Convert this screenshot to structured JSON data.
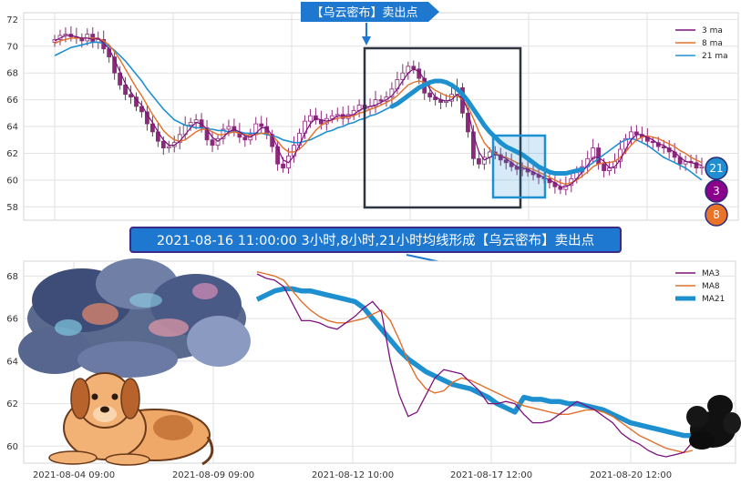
{
  "header_callout": {
    "text": "【乌云密布】卖出点"
  },
  "main_callout": {
    "text": "2021-08-16 11:00:00 3小时,8小时,21小时均线形成【乌云密布】卖出点"
  },
  "badges": [
    {
      "label": "21",
      "color": "#1f8fd1"
    },
    {
      "label": "3",
      "color": "#8b008b"
    },
    {
      "label": "8",
      "color": "#e8742a"
    }
  ],
  "colors": {
    "up": "#8b2a7a",
    "ma3": "#7b127b",
    "ma8": "#e0702a",
    "ma21": "#1e90d0",
    "box_dark": "#2f3540",
    "box_blue": "#1e90d0",
    "callout_bg": "#1e78d0"
  },
  "illustrations": {
    "cloud": "storm-cloud-illustration",
    "dog": "dog-illustration",
    "dark_cloud": "dark-cloud-illustration"
  },
  "chart_data": [
    {
      "type": "candlestick",
      "ylim": [
        57,
        72.5
      ],
      "yticks": [
        58,
        60,
        62,
        64,
        66,
        68,
        70,
        72
      ],
      "grid": true,
      "legend": {
        "placement": "top-right",
        "entries": [
          "3 ma",
          "8 ma",
          "21 ma"
        ]
      },
      "n_points": 120,
      "close": [
        70.5,
        70.8,
        70.9,
        70.7,
        70.6,
        70.4,
        70.9,
        70.3,
        70.5,
        69.8,
        69.2,
        68.0,
        67.1,
        66.4,
        66.2,
        65.5,
        65.1,
        64.2,
        63.6,
        62.9,
        62.4,
        62.5,
        62.8,
        63.4,
        64.1,
        64.3,
        64.5,
        63.9,
        63.0,
        62.6,
        63.1,
        63.8,
        64.0,
        63.6,
        63.2,
        63.0,
        63.4,
        64.2,
        64.0,
        63.4,
        62.5,
        61.2,
        60.9,
        61.8,
        62.6,
        63.5,
        64.4,
        64.8,
        64.5,
        64.2,
        64.6,
        64.8,
        64.9,
        64.6,
        64.9,
        65.2,
        65.6,
        65.3,
        65.5,
        66.0,
        65.9,
        66.2,
        66.8,
        67.5,
        68.0,
        68.5,
        68.3,
        67.6,
        66.5,
        66.2,
        66.0,
        65.8,
        65.9,
        66.4,
        66.9,
        65.0,
        63.6,
        61.6,
        61.2,
        61.7,
        62.1,
        61.9,
        61.5,
        61.3,
        61.0,
        60.8,
        60.9,
        60.6,
        60.4,
        60.2,
        60.1,
        59.8,
        59.5,
        59.3,
        59.6,
        60.1,
        60.6,
        61.0,
        61.6,
        62.4,
        61.2,
        60.7,
        60.9,
        61.4,
        62.3,
        63.1,
        63.6,
        63.4,
        63.2,
        62.9,
        62.8,
        62.5,
        62.4,
        62.1,
        61.7,
        61.2,
        61.4,
        61.3,
        60.9,
        61.0
      ],
      "ma3": [
        70.4,
        70.6,
        70.8,
        70.8,
        70.7,
        70.6,
        70.6,
        70.5,
        70.6,
        70.2,
        69.8,
        69.0,
        68.1,
        67.2,
        66.6,
        66.0,
        65.6,
        64.9,
        64.3,
        63.6,
        63.0,
        62.6,
        62.6,
        62.9,
        63.4,
        63.9,
        64.3,
        64.2,
        63.8,
        63.2,
        62.9,
        63.2,
        63.6,
        63.8,
        63.6,
        63.3,
        63.2,
        63.5,
        63.9,
        63.9,
        63.3,
        62.4,
        61.5,
        61.3,
        61.8,
        62.6,
        63.5,
        64.2,
        64.6,
        64.5,
        64.4,
        64.5,
        64.8,
        64.8,
        64.8,
        64.9,
        65.2,
        65.4,
        65.5,
        65.6,
        65.8,
        66.0,
        66.3,
        66.8,
        67.4,
        68.0,
        68.3,
        68.1,
        67.5,
        66.8,
        66.2,
        66.0,
        65.9,
        66.0,
        66.4,
        66.1,
        65.2,
        63.4,
        62.1,
        61.5,
        61.7,
        61.9,
        61.8,
        61.6,
        61.3,
        61.0,
        60.9,
        60.8,
        60.6,
        60.4,
        60.2,
        60.0,
        59.8,
        59.5,
        59.5,
        59.7,
        60.1,
        60.6,
        61.1,
        61.7,
        61.7,
        61.4,
        60.9,
        61.0,
        61.5,
        62.3,
        63.0,
        63.4,
        63.4,
        63.2,
        63.0,
        62.7,
        62.6,
        62.3,
        62.1,
        61.7,
        61.4,
        61.3,
        61.2,
        61.1
      ],
      "ma8": [
        70.2,
        70.4,
        70.5,
        70.6,
        70.6,
        70.6,
        70.6,
        70.6,
        70.6,
        70.4,
        70.1,
        69.6,
        69.0,
        68.3,
        67.6,
        66.9,
        66.3,
        65.6,
        64.9,
        64.3,
        63.7,
        63.3,
        63.0,
        62.9,
        63.0,
        63.3,
        63.6,
        63.8,
        63.8,
        63.6,
        63.4,
        63.4,
        63.5,
        63.6,
        63.5,
        63.4,
        63.3,
        63.4,
        63.5,
        63.5,
        63.3,
        62.9,
        62.4,
        62.1,
        62.1,
        62.3,
        62.7,
        63.2,
        63.7,
        64.1,
        64.3,
        64.5,
        64.6,
        64.7,
        64.7,
        64.8,
        65.0,
        65.1,
        65.3,
        65.4,
        65.6,
        65.8,
        66.0,
        66.3,
        66.7,
        67.1,
        67.3,
        67.4,
        67.3,
        67.0,
        66.7,
        66.5,
        66.3,
        66.2,
        66.3,
        66.0,
        65.5,
        64.6,
        63.6,
        62.8,
        62.3,
        62.0,
        61.8,
        61.7,
        61.5,
        61.3,
        61.1,
        60.9,
        60.8,
        60.6,
        60.4,
        60.2,
        60.0,
        59.8,
        59.7,
        59.8,
        60.0,
        60.3,
        60.6,
        61.0,
        61.2,
        61.3,
        61.3,
        61.4,
        61.7,
        62.1,
        62.6,
        63.0,
        63.2,
        63.3,
        63.2,
        63.1,
        62.9,
        62.7,
        62.5,
        62.2,
        62.0,
        61.7,
        61.5,
        61.3
      ],
      "ma21": [
        69.3,
        69.5,
        69.7,
        69.9,
        70.0,
        70.1,
        70.2,
        70.3,
        70.3,
        70.2,
        70.0,
        69.7,
        69.3,
        68.9,
        68.4,
        67.9,
        67.4,
        66.8,
        66.3,
        65.8,
        65.3,
        64.9,
        64.5,
        64.3,
        64.1,
        64.0,
        63.9,
        63.9,
        63.8,
        63.8,
        63.7,
        63.7,
        63.6,
        63.6,
        63.6,
        63.5,
        63.5,
        63.5,
        63.5,
        63.4,
        63.3,
        63.2,
        63.0,
        62.9,
        62.8,
        62.8,
        62.9,
        63.0,
        63.2,
        63.4,
        63.6,
        63.7,
        63.9,
        64.0,
        64.2,
        64.3,
        64.5,
        64.6,
        64.8,
        64.9,
        65.1,
        65.3,
        65.5,
        65.7,
        66.0,
        66.3,
        66.6,
        66.9,
        67.1,
        67.3,
        67.4,
        67.4,
        67.3,
        67.1,
        66.8,
        66.4,
        65.9,
        65.3,
        64.7,
        64.1,
        63.6,
        63.2,
        62.8,
        62.5,
        62.3,
        62.1,
        61.9,
        61.6,
        61.3,
        61.0,
        60.8,
        60.6,
        60.5,
        60.5,
        60.5,
        60.6,
        60.7,
        60.8,
        61.0,
        61.3,
        61.6,
        61.9,
        62.2,
        62.5,
        62.8,
        63.0,
        63.1,
        63.0,
        62.8,
        62.6,
        62.3,
        62.0,
        61.7,
        61.5,
        61.3,
        61.1,
        60.9,
        60.6,
        60.3,
        60.0
      ]
    },
    {
      "type": "line",
      "ylim": [
        59.2,
        68.7
      ],
      "yticks": [
        60,
        62,
        64,
        66,
        68
      ],
      "xtick_labels": [
        "2021-08-04 09:00",
        "2021-08-09 09:00",
        "2021-08-12 10:00",
        "2021-08-17 12:00",
        "2021-08-20 12:00"
      ],
      "grid": true,
      "legend": {
        "placement": "top-right"
      },
      "series": [
        {
          "name": "MA3",
          "values": [
            68.1,
            67.9,
            67.8,
            67.5,
            66.7,
            65.9,
            65.9,
            65.8,
            65.6,
            65.5,
            65.8,
            66.1,
            66.5,
            66.8,
            66.3,
            64.0,
            62.4,
            61.4,
            61.6,
            62.4,
            63.2,
            63.6,
            63.5,
            63.4,
            63.0,
            62.6,
            62.0,
            62.0,
            62.1,
            62.0,
            61.5,
            61.1,
            61.1,
            61.2,
            61.5,
            61.8,
            62.1,
            61.9,
            61.7,
            61.4,
            61.1,
            60.6,
            60.3,
            60.1,
            59.8,
            59.6,
            59.5,
            59.6,
            59.7,
            60.2
          ]
        },
        {
          "name": "MA8",
          "values": [
            68.2,
            68.1,
            68.0,
            67.8,
            67.3,
            66.8,
            66.4,
            66.1,
            65.9,
            65.8,
            65.8,
            65.9,
            66.0,
            66.2,
            66.4,
            65.9,
            65.0,
            64.0,
            63.2,
            62.7,
            62.5,
            62.6,
            63.0,
            63.2,
            63.1,
            62.9,
            62.7,
            62.5,
            62.3,
            62.1,
            61.9,
            61.8,
            61.7,
            61.6,
            61.5,
            61.5,
            61.6,
            61.7,
            61.7,
            61.6,
            61.4,
            61.1,
            60.8,
            60.5,
            60.3,
            60.1,
            59.9,
            59.8,
            59.7,
            59.8
          ]
        },
        {
          "name": "MA21",
          "values": [
            66.9,
            67.1,
            67.3,
            67.4,
            67.4,
            67.3,
            67.3,
            67.2,
            67.1,
            67.0,
            66.9,
            66.8,
            66.5,
            66.0,
            65.5,
            65.0,
            64.5,
            64.1,
            63.8,
            63.5,
            63.3,
            63.1,
            62.9,
            62.8,
            62.7,
            62.5,
            62.3,
            62.0,
            61.8,
            61.6,
            62.3,
            62.2,
            62.2,
            62.1,
            62.1,
            62.0,
            62.0,
            61.9,
            61.8,
            61.7,
            61.5,
            61.3,
            61.1,
            61.0,
            60.9,
            60.8,
            60.7,
            60.6,
            60.5,
            60.5
          ]
        }
      ]
    }
  ]
}
